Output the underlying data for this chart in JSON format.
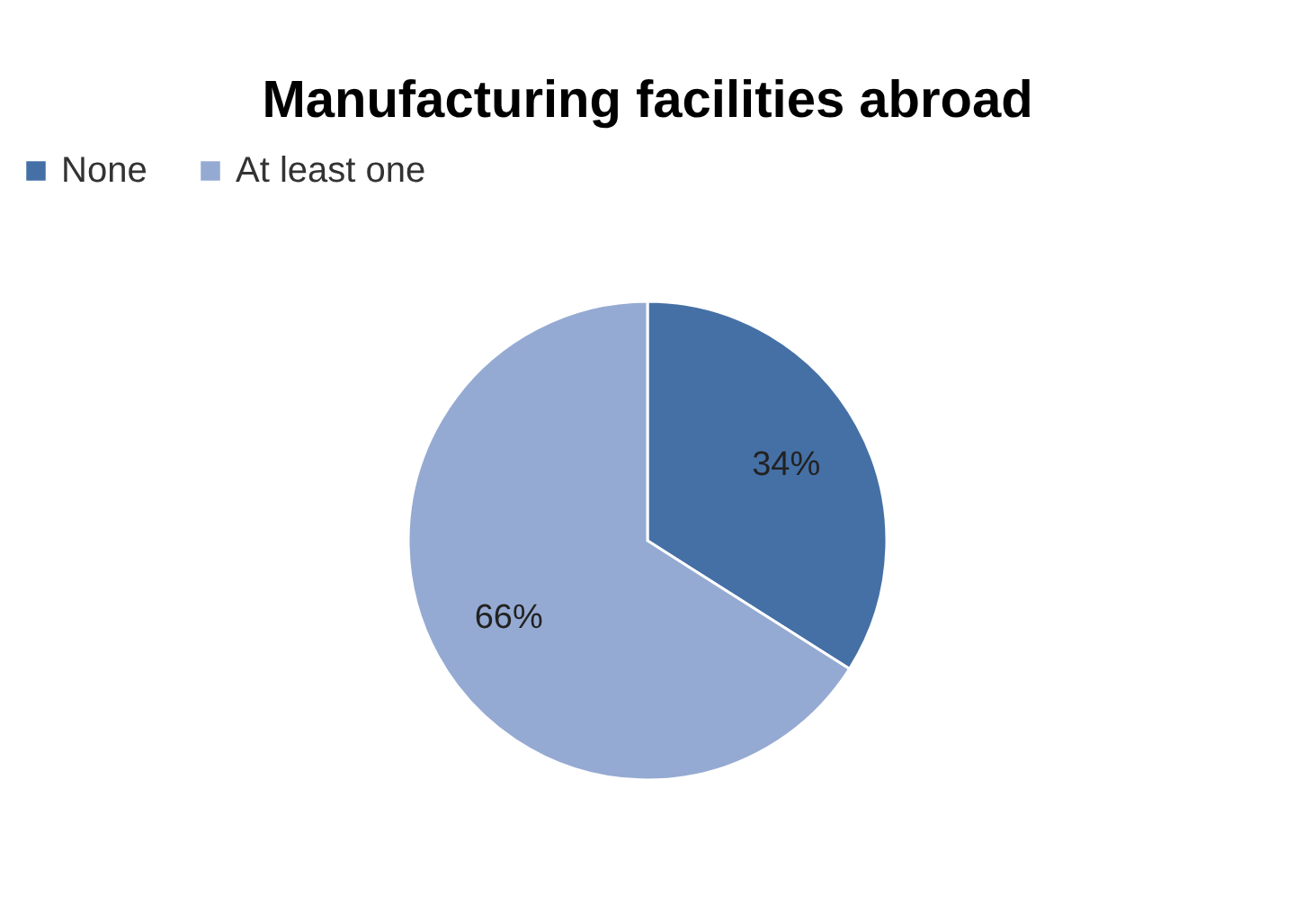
{
  "chart_data": {
    "type": "pie",
    "title": "Manufacturing facilities abroad",
    "categories": [
      "None",
      "At least one"
    ],
    "values": [
      34,
      66
    ],
    "colors": [
      "#4570a6",
      "#95aad2"
    ],
    "value_labels": [
      "34%",
      "66%"
    ],
    "legend": "top"
  }
}
